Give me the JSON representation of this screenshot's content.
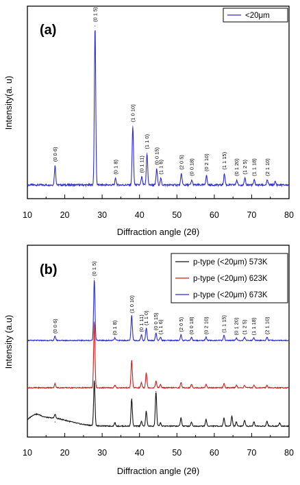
{
  "chart_data": [
    {
      "panel": "(a)",
      "type": "line",
      "xlabel": "Diffraction angle (2θ)",
      "ylabel": "Intensity(a. u)",
      "xlim": [
        10,
        80
      ],
      "xticks": [
        "10",
        "20",
        "30",
        "40",
        "50",
        "60",
        "70",
        "80"
      ],
      "legend_position": "top-right",
      "series": [
        {
          "name": "<20μm",
          "color": "#2a2ad8",
          "peaks": [
            {
              "x": 17.4,
              "rel": 0.12
            },
            {
              "x": 28.1,
              "rel": 1.0
            },
            {
              "x": 33.6,
              "rel": 0.04
            },
            {
              "x": 38.2,
              "rel": 0.37
            },
            {
              "x": 40.6,
              "rel": 0.05
            },
            {
              "x": 42.0,
              "rel": 0.2
            },
            {
              "x": 44.6,
              "rel": 0.1
            },
            {
              "x": 45.7,
              "rel": 0.04
            },
            {
              "x": 51.2,
              "rel": 0.07
            },
            {
              "x": 54.0,
              "rel": 0.03
            },
            {
              "x": 57.9,
              "rel": 0.06
            },
            {
              "x": 62.7,
              "rel": 0.07
            },
            {
              "x": 66.0,
              "rel": 0.03
            },
            {
              "x": 68.2,
              "rel": 0.04
            },
            {
              "x": 70.7,
              "rel": 0.03
            },
            {
              "x": 74.2,
              "rel": 0.03
            },
            {
              "x": 76.3,
              "rel": 0.02
            }
          ]
        }
      ],
      "annotations": [
        {
          "x": 17.4,
          "label": "(0 0 6)"
        },
        {
          "x": 28.1,
          "label": "(0 1 5)"
        },
        {
          "x": 33.6,
          "label": "(0 1 8)"
        },
        {
          "x": 38.2,
          "label": "(1 0 10)"
        },
        {
          "x": 40.6,
          "label": "(0 1 11)"
        },
        {
          "x": 42.0,
          "label": "(1 1 0)"
        },
        {
          "x": 44.6,
          "label": "(0 0 15)"
        },
        {
          "x": 45.7,
          "label": "(1 1 6)"
        },
        {
          "x": 51.2,
          "label": "(2 0 5)"
        },
        {
          "x": 54.0,
          "label": "(0 0 18)"
        },
        {
          "x": 57.9,
          "label": "(0 2 10)"
        },
        {
          "x": 62.7,
          "label": "(1 1 15)"
        },
        {
          "x": 66.0,
          "label": "(0 1 20)"
        },
        {
          "x": 68.2,
          "label": "(1 2 5)"
        },
        {
          "x": 70.7,
          "label": "(1 1 18)"
        },
        {
          "x": 74.2,
          "label": "(2 1 10)"
        }
      ]
    },
    {
      "panel": "(b)",
      "type": "line",
      "xlabel": "Diffraction angle (2θ)",
      "ylabel": "Intensity (a.u)",
      "xlim": [
        10,
        80
      ],
      "xticks": [
        "10",
        "20",
        "30",
        "40",
        "50",
        "60",
        "70",
        "80"
      ],
      "legend_position": "top-right",
      "series": [
        {
          "name": "p-type (<20μm) 573K",
          "color": "#111111",
          "hump": true,
          "peaks": [
            {
              "x": 17.4,
              "rel": 0.05
            },
            {
              "x": 27.9,
              "rel": 0.55
            },
            {
              "x": 33.4,
              "rel": 0.04
            },
            {
              "x": 37.9,
              "rel": 0.33
            },
            {
              "x": 40.5,
              "rel": 0.06
            },
            {
              "x": 41.8,
              "rel": 0.18
            },
            {
              "x": 44.4,
              "rel": 0.42
            },
            {
              "x": 45.6,
              "rel": 0.04
            },
            {
              "x": 51.1,
              "rel": 0.1
            },
            {
              "x": 53.9,
              "rel": 0.05
            },
            {
              "x": 57.8,
              "rel": 0.08
            },
            {
              "x": 62.6,
              "rel": 0.1
            },
            {
              "x": 64.7,
              "rel": 0.12
            },
            {
              "x": 65.9,
              "rel": 0.05
            },
            {
              "x": 68.1,
              "rel": 0.07
            },
            {
              "x": 70.6,
              "rel": 0.05
            },
            {
              "x": 74.1,
              "rel": 0.06
            },
            {
              "x": 77.5,
              "rel": 0.04
            }
          ]
        },
        {
          "name": "p-type (<20μm) 623K",
          "color": "#d81818",
          "peaks": [
            {
              "x": 17.4,
              "rel": 0.05
            },
            {
              "x": 27.9,
              "rel": 0.8
            },
            {
              "x": 33.4,
              "rel": 0.03
            },
            {
              "x": 37.9,
              "rel": 0.33
            },
            {
              "x": 40.5,
              "rel": 0.06
            },
            {
              "x": 41.8,
              "rel": 0.18
            },
            {
              "x": 44.4,
              "rel": 0.08
            },
            {
              "x": 45.6,
              "rel": 0.04
            },
            {
              "x": 51.1,
              "rel": 0.06
            },
            {
              "x": 53.9,
              "rel": 0.04
            },
            {
              "x": 57.8,
              "rel": 0.04
            },
            {
              "x": 62.6,
              "rel": 0.05
            },
            {
              "x": 65.9,
              "rel": 0.03
            },
            {
              "x": 68.1,
              "rel": 0.03
            },
            {
              "x": 70.6,
              "rel": 0.03
            },
            {
              "x": 74.1,
              "rel": 0.03
            }
          ]
        },
        {
          "name": "p-type (<20μm) 673K",
          "color": "#2a2ad8",
          "peaks": [
            {
              "x": 17.4,
              "rel": 0.05
            },
            {
              "x": 27.9,
              "rel": 0.75
            },
            {
              "x": 33.4,
              "rel": 0.03
            },
            {
              "x": 37.9,
              "rel": 0.3
            },
            {
              "x": 40.5,
              "rel": 0.07
            },
            {
              "x": 41.8,
              "rel": 0.15
            },
            {
              "x": 44.4,
              "rel": 0.09
            },
            {
              "x": 45.6,
              "rel": 0.04
            },
            {
              "x": 51.1,
              "rel": 0.07
            },
            {
              "x": 53.9,
              "rel": 0.04
            },
            {
              "x": 57.8,
              "rel": 0.04
            },
            {
              "x": 62.6,
              "rel": 0.06
            },
            {
              "x": 65.9,
              "rel": 0.03
            },
            {
              "x": 68.1,
              "rel": 0.04
            },
            {
              "x": 70.6,
              "rel": 0.03
            },
            {
              "x": 74.1,
              "rel": 0.04
            }
          ]
        }
      ],
      "annotations": [
        {
          "x": 17.4,
          "label": "(0 0 6)"
        },
        {
          "x": 27.9,
          "label": "(0 1 5)"
        },
        {
          "x": 33.4,
          "label": "(0 1 8)"
        },
        {
          "x": 37.9,
          "label": "(1 0 10)"
        },
        {
          "x": 40.5,
          "label": "(0 1 11)"
        },
        {
          "x": 41.8,
          "label": "(1 1 0)"
        },
        {
          "x": 44.4,
          "label": "(0 0 15)"
        },
        {
          "x": 45.6,
          "label": "(1 1 6)"
        },
        {
          "x": 51.1,
          "label": "(2 0 5)"
        },
        {
          "x": 53.9,
          "label": "(0 0 18)"
        },
        {
          "x": 57.8,
          "label": "(0 2 10)"
        },
        {
          "x": 62.6,
          "label": "(1 1 15)"
        },
        {
          "x": 65.9,
          "label": "(0 1 20)"
        },
        {
          "x": 68.1,
          "label": "(1 2 5)"
        },
        {
          "x": 70.6,
          "label": "(1 1 18)"
        },
        {
          "x": 74.1,
          "label": "(2 1 10)"
        }
      ]
    }
  ]
}
